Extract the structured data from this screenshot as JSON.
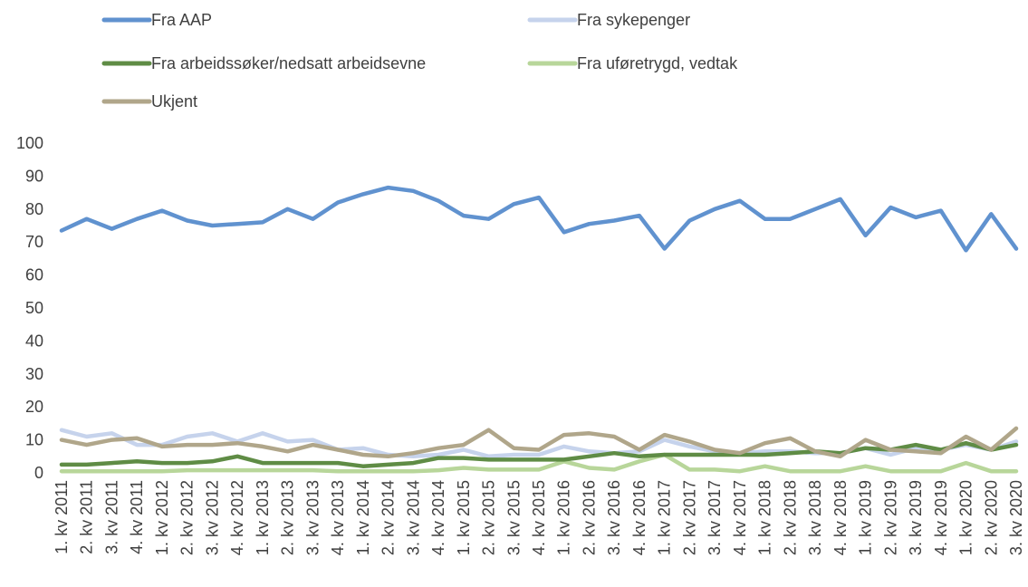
{
  "chart_data": {
    "type": "line",
    "legend": "top",
    "categories": [
      "1. kv 2011",
      "2. kv 2011",
      "3. kv 2011",
      "4. kv 2011",
      "1. kv 2012",
      "2. kv 2012",
      "3. kv 2012",
      "4. kv 2012",
      "1. kv 2013",
      "2. kv 2013",
      "3. kv 2013",
      "4. kv 2013",
      "1. kv 2014",
      "2. kv 2014",
      "3. kv 2014",
      "4. kv 2014",
      "1. kv 2015",
      "2. kv 2015",
      "3. kv 2015",
      "4. kv 2015",
      "1. kv 2016",
      "2. kv 2016",
      "3. kv 2016",
      "4. kv 2016",
      "1. kv 2017",
      "2. kv 2017",
      "3. kv 2017",
      "4. kv 2017",
      "1. kv 2018",
      "2. kv 2018",
      "3. kv 2018",
      "4. kv 2018",
      "1. kv 2019",
      "2. kv 2019",
      "3. kv 2019",
      "4. kv 2019",
      "1. kv 2020",
      "2. kv 2020",
      "3. kv 2020"
    ],
    "series": [
      {
        "name": "Fra AAP",
        "color": "#6092cf",
        "values": [
          73.5,
          77,
          74,
          77,
          79.5,
          76.5,
          75,
          75.5,
          76,
          80,
          77,
          82,
          84.5,
          86.5,
          85.5,
          82.5,
          78,
          77,
          81.5,
          83.5,
          73,
          75.5,
          76.5,
          78,
          68,
          76.5,
          80,
          82.5,
          77,
          77,
          80,
          83,
          72,
          80.5,
          77.5,
          79.5,
          67.5,
          78.5,
          68
        ]
      },
      {
        "name": "Fra sykepenger",
        "color": "#c6d3ec",
        "values": [
          13,
          11,
          12,
          8.5,
          8.5,
          11,
          12,
          9.5,
          12,
          9.5,
          10,
          7,
          7.5,
          5.5,
          5,
          5.5,
          7,
          5,
          5.5,
          5.5,
          8,
          6.5,
          6,
          6.5,
          10,
          8,
          6.5,
          6,
          6.5,
          6.5,
          6,
          6,
          7.5,
          5.5,
          7.5,
          7,
          8.5,
          7,
          9.5
        ]
      },
      {
        "name": "Fra arbeidssøker/nedsatt arbeidsevne",
        "color": "#5f8c45",
        "values": [
          2.5,
          2.5,
          3,
          3.5,
          3,
          3,
          3.5,
          5,
          3,
          3,
          3,
          3,
          2,
          2.5,
          3,
          4.5,
          4.5,
          4,
          4,
          4,
          4,
          5,
          6,
          5,
          5.5,
          5.5,
          5.5,
          5.5,
          5.5,
          6,
          6.5,
          6,
          7.5,
          7,
          8.5,
          7,
          9,
          7,
          8.5
        ]
      },
      {
        "name": "Fra uføretrygd, vedtak",
        "color": "#b8d69a",
        "values": [
          0.5,
          0.5,
          0.5,
          0.5,
          0.5,
          0.8,
          0.8,
          0.8,
          0.8,
          0.8,
          0.8,
          0.5,
          0.5,
          0.5,
          0.5,
          0.8,
          1.5,
          1,
          1,
          1,
          3.5,
          1.5,
          1,
          3.5,
          5.5,
          1,
          1,
          0.5,
          2,
          0.5,
          0.5,
          0.5,
          2,
          0.5,
          0.5,
          0.5,
          3,
          0.5,
          0.5
        ]
      },
      {
        "name": "Ukjent",
        "color": "#b0a68a",
        "values": [
          10,
          8.5,
          10,
          10.5,
          8,
          8.5,
          8.5,
          9,
          8,
          6.5,
          8.5,
          7,
          5.5,
          5,
          6,
          7.5,
          8.5,
          13,
          7.5,
          7,
          11.5,
          12,
          11,
          7,
          11.5,
          9.5,
          7,
          6,
          9,
          10.5,
          6.5,
          5,
          10,
          7,
          6.5,
          6,
          11,
          7,
          13.5
        ]
      }
    ],
    "ylim": [
      0,
      100
    ],
    "yticks": [
      0,
      10,
      20,
      30,
      40,
      50,
      60,
      70,
      80,
      90,
      100
    ],
    "grid": false
  }
}
